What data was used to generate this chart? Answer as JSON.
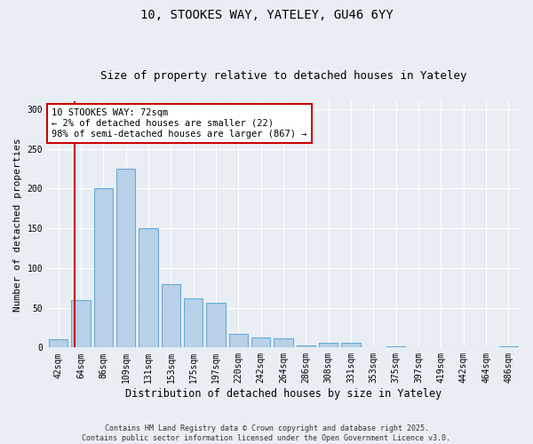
{
  "title1": "10, STOOKES WAY, YATELEY, GU46 6YY",
  "title2": "Size of property relative to detached houses in Yateley",
  "xlabel": "Distribution of detached houses by size in Yateley",
  "ylabel": "Number of detached properties",
  "categories": [
    "42sqm",
    "64sqm",
    "86sqm",
    "109sqm",
    "131sqm",
    "153sqm",
    "175sqm",
    "197sqm",
    "220sqm",
    "242sqm",
    "264sqm",
    "286sqm",
    "308sqm",
    "331sqm",
    "353sqm",
    "375sqm",
    "397sqm",
    "419sqm",
    "442sqm",
    "464sqm",
    "486sqm"
  ],
  "values": [
    10,
    60,
    200,
    225,
    150,
    80,
    62,
    56,
    17,
    13,
    11,
    3,
    6,
    6,
    0,
    2,
    0,
    0,
    0,
    0,
    2
  ],
  "bar_color": "#b8d0e8",
  "bar_edge_color": "#6aaad4",
  "bar_linewidth": 0.8,
  "vline_color": "#cc0000",
  "vline_x": 0.72,
  "annotation_text": "10 STOOKES WAY: 72sqm\n← 2% of detached houses are smaller (22)\n98% of semi-detached houses are larger (867) →",
  "annotation_box_facecolor": "#ffffff",
  "annotation_box_edgecolor": "#cc0000",
  "ylim": [
    0,
    310
  ],
  "yticks": [
    0,
    50,
    100,
    150,
    200,
    250,
    300
  ],
  "background_color": "#e8eef4",
  "grid_color": "#ffffff",
  "footer": "Contains HM Land Registry data © Crown copyright and database right 2025.\nContains public sector information licensed under the Open Government Licence v3.0.",
  "title1_fontsize": 10,
  "title2_fontsize": 9,
  "xlabel_fontsize": 8.5,
  "ylabel_fontsize": 8,
  "tick_fontsize": 7,
  "annotation_fontsize": 7.5,
  "footer_fontsize": 6
}
